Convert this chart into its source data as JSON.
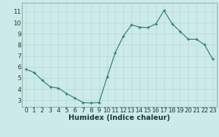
{
  "x": [
    0,
    1,
    2,
    3,
    4,
    5,
    6,
    7,
    8,
    9,
    10,
    11,
    12,
    13,
    14,
    15,
    16,
    17,
    18,
    19,
    20,
    21,
    22,
    23
  ],
  "y": [
    5.8,
    5.5,
    4.8,
    4.2,
    4.1,
    3.6,
    3.2,
    2.8,
    2.75,
    2.8,
    5.1,
    7.3,
    8.8,
    9.8,
    9.6,
    9.55,
    9.9,
    11.1,
    9.9,
    9.2,
    8.5,
    8.5,
    8.0,
    6.7
  ],
  "line_color": "#2e7d6e",
  "bg_color": "#cceae7",
  "grid_color": "#b8dbd8",
  "xlabel": "Humidex (Indice chaleur)",
  "xlabel_fontsize": 7.5,
  "tick_fontsize": 6.5,
  "ylim": [
    2.4,
    11.8
  ],
  "xlim": [
    -0.5,
    23.5
  ],
  "yticks": [
    3,
    4,
    5,
    6,
    7,
    8,
    9,
    10,
    11
  ],
  "xticks": [
    0,
    1,
    2,
    3,
    4,
    5,
    6,
    7,
    8,
    9,
    10,
    11,
    12,
    13,
    14,
    15,
    16,
    17,
    18,
    19,
    20,
    21,
    22,
    23
  ]
}
